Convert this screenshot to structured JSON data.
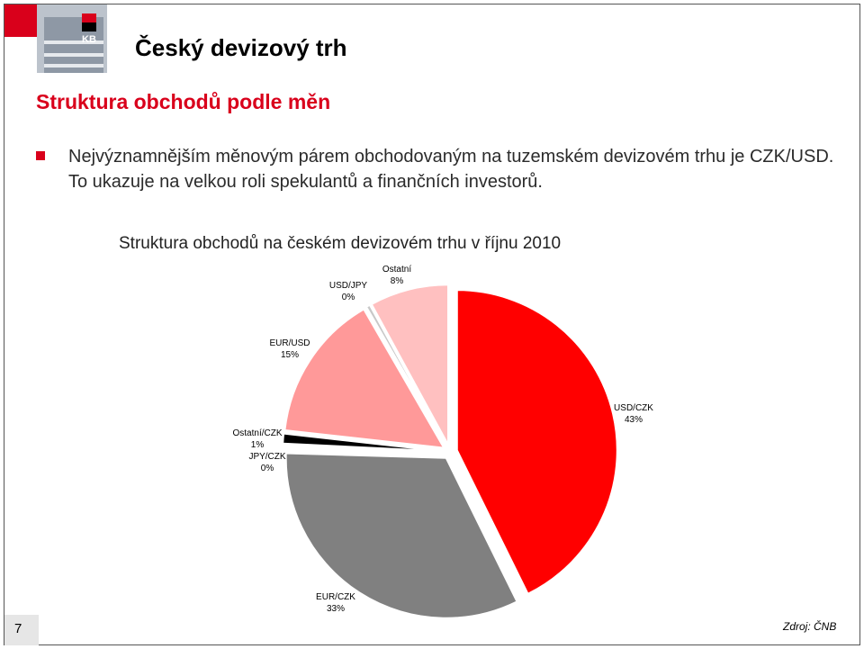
{
  "slide": {
    "title": "Český devizový trh",
    "subtitle": "Struktura obchodů podle měn",
    "bullet_text": "Nejvýznamnějším měnovým párem obchodovaným na tuzemském devizovém trhu je CZK/USD. To ukazuje na velkou roli spekulantů a finančních investorů.",
    "page_number": "7",
    "source": "Zdroj: ČNB",
    "logo_text": "KB",
    "accent_color": "#d9001b"
  },
  "chart_data": {
    "type": "pie",
    "title": "Struktura obchodů na českém devizovém trhu v říjnu 2010",
    "slices": [
      {
        "name": "USD/CZK",
        "value": 43,
        "label": "43%",
        "color": "#ff0000"
      },
      {
        "name": "EUR/CZK",
        "value": 33,
        "label": "33%",
        "color": "#808080"
      },
      {
        "name": "JPY/CZK",
        "value": 0.3,
        "label": "0%",
        "color": "#ffffff"
      },
      {
        "name": "Ostatní/CZK",
        "value": 1,
        "label": "1%",
        "color": "#000000"
      },
      {
        "name": "EUR/USD",
        "value": 15,
        "label": "15%",
        "color": "#ff9999"
      },
      {
        "name": "USD/JPY",
        "value": 0.4,
        "label": "0%",
        "color": "#c8c8c8"
      },
      {
        "name": "Ostatní",
        "value": 8,
        "label": "8%",
        "color": "#ffc0c0"
      }
    ]
  }
}
